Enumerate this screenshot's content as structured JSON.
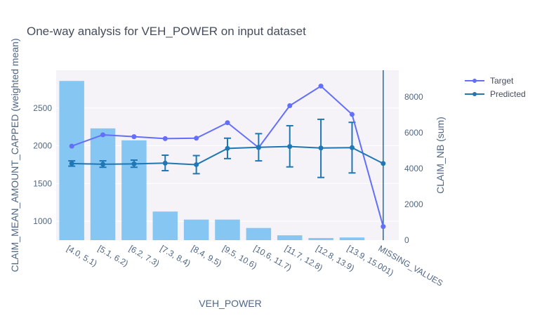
{
  "chart_data": {
    "type": "bar",
    "title": "One-way analysis for VEH_POWER on input dataset",
    "xlabel": "VEH_POWER",
    "ylabel_left": "CLAIM_MEAN_AMOUNT_CAPPED (weighted mean)",
    "ylabel_right": "CLAIM_NB (sum)",
    "categories": [
      "[4.0, 5.1)",
      "[5.1, 6.2)",
      "[6.2, 7.3)",
      "[7.3, 8.4)",
      "[8.4, 9.5)",
      "[9.5, 10.6)",
      "[10.6, 11.7)",
      "[11.7, 12.8)",
      "[12.8, 13.9)",
      "[13.9, 15.001)",
      "MISSING_VALUES"
    ],
    "left_axis": {
      "range": [
        750,
        3000
      ],
      "ticks": [
        1000,
        1500,
        2000,
        2500
      ]
    },
    "right_axis": {
      "range": [
        0,
        9500
      ],
      "ticks": [
        0,
        2000,
        4000,
        6000,
        8000
      ]
    },
    "bars": {
      "axis": "right",
      "color": "#85c6f2",
      "values": [
        8900,
        6250,
        5580,
        1600,
        1150,
        1150,
        680,
        270,
        120,
        150,
        0
      ]
    },
    "series": [
      {
        "name": "Target",
        "axis": "left",
        "color": "#636efa",
        "values": [
          1995,
          2145,
          2120,
          2095,
          2100,
          2305,
          1975,
          2530,
          2790,
          2415,
          930
        ]
      },
      {
        "name": "Predicted",
        "axis": "left",
        "color": "#1f77b4",
        "values": [
          1765,
          1755,
          1760,
          1770,
          1750,
          1965,
          1980,
          1990,
          1970,
          1975,
          1765
        ],
        "error_low": [
          1730,
          1715,
          1715,
          1670,
          1630,
          1830,
          1800,
          1720,
          1580,
          1640,
          null
        ],
        "error_high": [
          1800,
          1800,
          1810,
          1875,
          1870,
          2100,
          2160,
          2265,
          2350,
          2310,
          null
        ]
      }
    ],
    "vertical_line_category": "MISSING_VALUES",
    "vertical_line_color": "#1a6fa0",
    "legend_position": "top-right",
    "grid": true
  }
}
